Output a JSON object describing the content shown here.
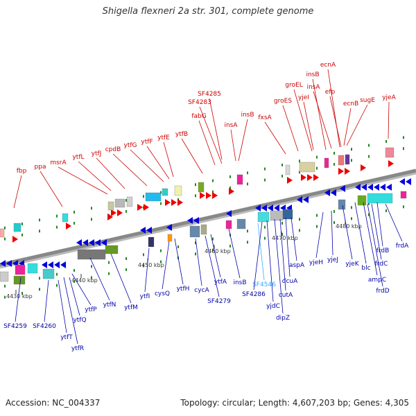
{
  "title": "Shigella flexneri 2a str. 301, complete genome",
  "footer": {
    "accession": "Accession: NC_004337",
    "summary": "Topology: circular; Length: 4,607,203 bp; Genes: 4,305"
  },
  "colors": {
    "forward_label": "#cc0000",
    "reverse_label": "#0000aa",
    "highlight_label": "#33aaff",
    "backbone": "#888888",
    "tick_mark": "#228822"
  },
  "ruler_ticks": [
    "4430 kbp",
    "4440 kbp",
    "4450 kbp",
    "4460 kbp",
    "4470 kbp",
    "4480 kbp"
  ],
  "forward_labels": [
    "fbp",
    "ppa",
    "msrA",
    "ytfL",
    "ytfJ",
    "cpdB",
    "ytfG",
    "ytfF",
    "ytfE",
    "ytfB",
    "fabG",
    "SF4283",
    "SF4285",
    "insA",
    "insB",
    "fxsA",
    "groES",
    "groEL",
    "yjeI",
    "insB",
    "insA",
    "ecnA",
    "efp",
    "ecnB",
    "sugE",
    "yjeA"
  ],
  "reverse_labels": [
    "SF4259",
    "SF4260",
    "ytfT",
    "ytfR",
    "ytfQ",
    "ytfP",
    "ytfN",
    "ytfM",
    "ytfI",
    "cysQ",
    "ytfH",
    "cycA",
    "SF4279",
    "ytfA",
    "insB",
    "SF4546",
    "SF4286",
    "yjdC",
    "dipZ",
    "cutA",
    "dcuA",
    "aspA",
    "yjeH",
    "yjeJ",
    "yjeK",
    "blc",
    "ampC",
    "frdD",
    "frdC",
    "frdB",
    "frdA"
  ]
}
